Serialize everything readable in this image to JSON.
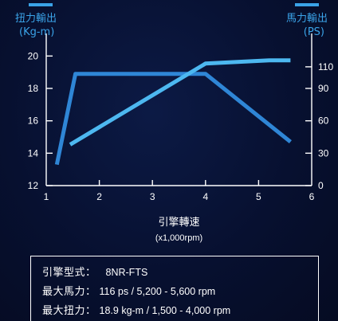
{
  "chart_data": {
    "type": "line",
    "x_label": "引擎轉速",
    "x_unit": "(x1,000rpm)",
    "x_ticks": [
      1,
      2,
      3,
      4,
      5,
      6
    ],
    "x_range": [
      1,
      6
    ],
    "left_axis": {
      "title": "扭力輸出",
      "unit": "(Kg-m)",
      "range": [
        12,
        21
      ],
      "ticks": [
        12,
        14,
        16,
        18,
        20
      ]
    },
    "right_axis": {
      "title": "馬力輸出",
      "unit": "(PS)",
      "range": [
        0,
        135
      ],
      "ticks": [
        0,
        30,
        60,
        90,
        110
      ]
    },
    "series": [
      {
        "axis": "left",
        "color": "#2f86d6",
        "points": [
          [
            1.2,
            13.3
          ],
          [
            1.55,
            18.9
          ],
          [
            4.0,
            18.9
          ],
          [
            5.6,
            14.7
          ]
        ]
      },
      {
        "axis": "right",
        "color": "#4db8f0",
        "points": [
          [
            1.45,
            38
          ],
          [
            4.0,
            113
          ],
          [
            5.2,
            116
          ],
          [
            5.6,
            116
          ]
        ]
      }
    ],
    "grid": false,
    "legend": "none"
  },
  "specs": {
    "model_label": "引擎型式：",
    "model_value": "8NR-FTS",
    "power_label": "最大馬力：",
    "power_value": "116 ps / 5,200 - 5,600 rpm",
    "torque_label": "最大扭力：",
    "torque_value": "18.9 kg-m / 1,500 - 4,000 rpm"
  }
}
